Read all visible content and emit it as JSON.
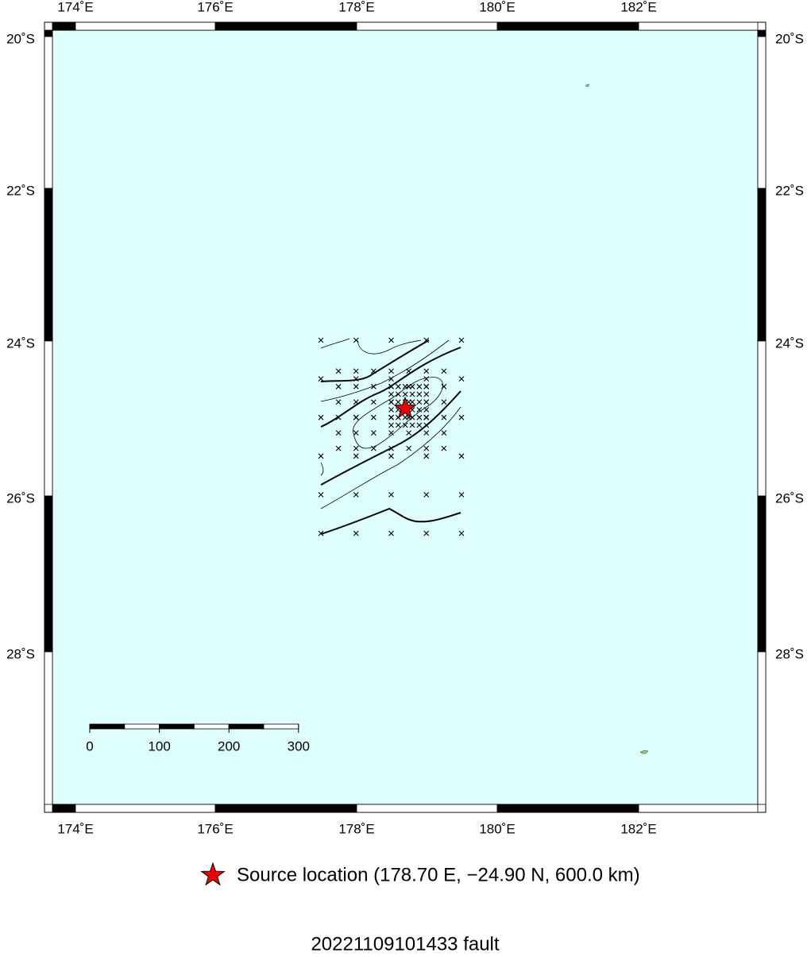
{
  "map": {
    "top_labels": [
      "174˚E",
      "176˚E",
      "178˚E",
      "180˚E",
      "182˚E"
    ],
    "bottom_labels": [
      "174˚E",
      "176˚E",
      "178˚E",
      "180˚E",
      "182˚E"
    ],
    "left_labels": [
      "20˚S",
      "22˚S",
      "24˚S",
      "26˚S",
      "28˚S"
    ],
    "right_labels": [
      "20˚S",
      "22˚S",
      "24˚S",
      "26˚S",
      "28˚S"
    ],
    "scale_labels": [
      "0",
      "100",
      "200",
      "300"
    ],
    "legend": "Source location (178.70 E, −24.90 N, 600.0 km)",
    "title": "20221109101433 fault"
  }
}
